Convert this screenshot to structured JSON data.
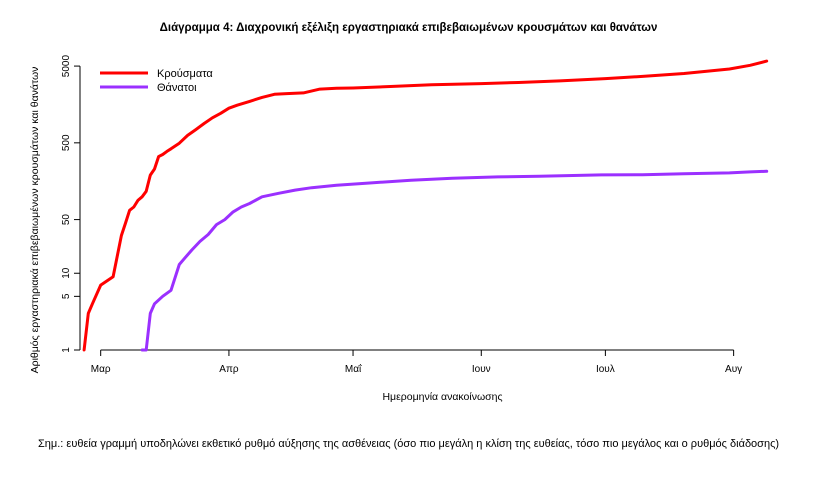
{
  "chart_data": {
    "type": "line",
    "title": "Διάγραμμα 4: Διαχρονική εξέλιξη εργαστηριακά επιβεβαιωμένων κρουσμάτων και θανάτων",
    "xlabel": "Ημερομηνία ανακοίνωσης",
    "ylabel": "Αριθμός εργαστηριακά επιβεβαιωμένων κρουσμάτων και θανάτων",
    "y_scale": "log",
    "ylim": [
      1,
      6000
    ],
    "y_ticks": [
      1,
      5,
      10,
      50,
      500,
      5000
    ],
    "y_tick_labels": [
      "1",
      "5",
      "10",
      "50",
      "500",
      "5000"
    ],
    "xlim": [
      "2020-02-25",
      "2020-08-11"
    ],
    "x_ticks": [
      "2020-03-01",
      "2020-04-01",
      "2020-05-01",
      "2020-06-01",
      "2020-07-01",
      "2020-08-01"
    ],
    "x_tick_labels": [
      "Μαρ",
      "Απρ",
      "Μαΐ",
      "Ιουν",
      "Ιουλ",
      "Αυγ"
    ],
    "legend_position": "top-left",
    "grid": false,
    "series": [
      {
        "name": "Κρούσματα",
        "color": "#ff0000",
        "x": [
          "2020-02-26",
          "2020-02-27",
          "2020-02-28",
          "2020-03-01",
          "2020-03-04",
          "2020-03-06",
          "2020-03-07",
          "2020-03-08",
          "2020-03-09",
          "2020-03-10",
          "2020-03-11",
          "2020-03-12",
          "2020-03-13",
          "2020-03-14",
          "2020-03-15",
          "2020-03-16",
          "2020-03-17",
          "2020-03-18",
          "2020-03-20",
          "2020-03-22",
          "2020-03-24",
          "2020-03-26",
          "2020-03-28",
          "2020-03-30",
          "2020-04-01",
          "2020-04-03",
          "2020-04-06",
          "2020-04-09",
          "2020-04-12",
          "2020-04-15",
          "2020-04-19",
          "2020-04-23",
          "2020-04-27",
          "2020-05-01",
          "2020-05-10",
          "2020-05-20",
          "2020-06-01",
          "2020-06-10",
          "2020-06-20",
          "2020-07-01",
          "2020-07-10",
          "2020-07-20",
          "2020-07-31",
          "2020-08-05",
          "2020-08-09"
        ],
        "values": [
          1,
          3,
          4,
          7,
          9,
          31,
          45,
          66,
          73,
          89,
          99,
          117,
          190,
          228,
          331,
          352,
          387,
          418,
          495,
          624,
          743,
          892,
          1061,
          1212,
          1415,
          1544,
          1735,
          1955,
          2145,
          2192,
          2235,
          2506,
          2566,
          2591,
          2710,
          2850,
          2952,
          3058,
          3203,
          3432,
          3672,
          4007,
          4587,
          5123,
          5800
        ]
      },
      {
        "name": "Θάνατοι",
        "color": "#9b30ff",
        "x": [
          "2020-03-11",
          "2020-03-12",
          "2020-03-13",
          "2020-03-14",
          "2020-03-16",
          "2020-03-18",
          "2020-03-20",
          "2020-03-21",
          "2020-03-23",
          "2020-03-25",
          "2020-03-27",
          "2020-03-29",
          "2020-03-31",
          "2020-04-02",
          "2020-04-04",
          "2020-04-06",
          "2020-04-09",
          "2020-04-13",
          "2020-04-17",
          "2020-04-21",
          "2020-04-27",
          "2020-05-05",
          "2020-05-15",
          "2020-05-25",
          "2020-06-05",
          "2020-06-15",
          "2020-06-30",
          "2020-07-10",
          "2020-07-20",
          "2020-07-31",
          "2020-08-05",
          "2020-08-09"
        ],
        "values": [
          1,
          1,
          3,
          4,
          5,
          6,
          13,
          15,
          20,
          26,
          32,
          43,
          50,
          63,
          73,
          81,
          99,
          110,
          121,
          130,
          140,
          150,
          163,
          173,
          180,
          183,
          191,
          192,
          198,
          203,
          209,
          213
        ]
      }
    ]
  },
  "note": "Σημ.: ευθεία γραμμή υποδηλώνει εκθετικό ρυθμό αύξησης της ασθένειας (όσο πιο μεγάλη η κλίση της ευθείας, τόσο πιο μεγάλος και ο ρυθμός διάδοσης)"
}
